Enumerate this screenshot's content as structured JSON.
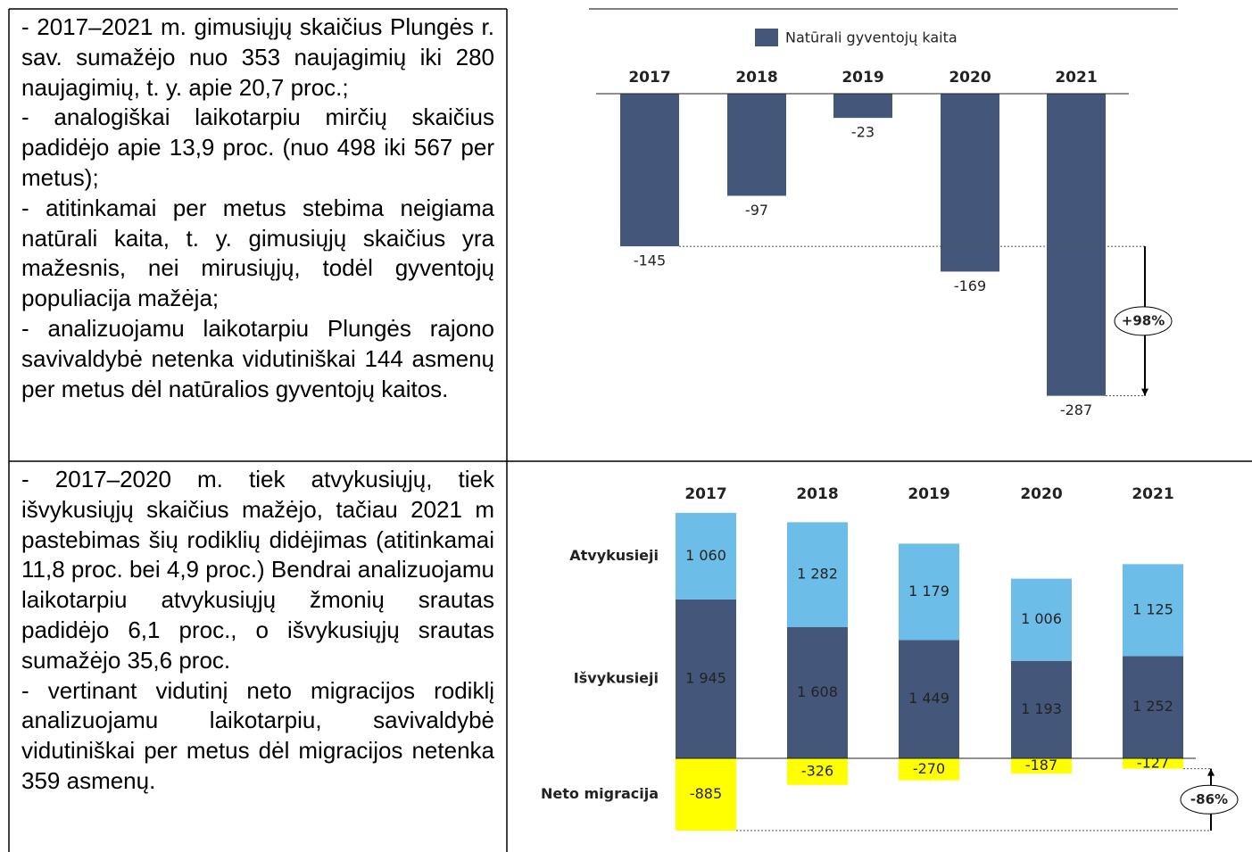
{
  "text_cells": [
    [
      "- 2017–2021 m. gimusiųjų skaičius Plungės r. sav. sumažėjo nuo 353 naujagimių iki 280 naujagimių, t. y. apie 20,7 proc.;",
      "- analogiškai laikotarpiu mirčių skaičius padidėjo apie 13,9 proc. (nuo 498 iki 567 per metus);",
      "- atitinkamai per metus stebima neigiama natūrali kaita, t. y. gimusiųjų skaičius yra mažesnis, nei mirusiųjų, todėl gyventojų populiacija mažėja;",
      "- analizuojamu laikotarpiu Plungės rajono savivaldybė netenka vidutiniškai 144 asmenų per metus dėl natūralios gyventojų kaitos."
    ],
    [
      "- 2017–2020 m. tiek atvykusiųjų, tiek išvykusiųjų skaičius mažėjo, tačiau 2021 m pastebimas šių rodiklių didėjimas (atitinkamai 11,8 proc. bei 4,9 proc.) Bendrai analizuojamu laikotarpiu atvykusiųjų žmonių srautas padidėjo 6,1 proc., o išvykusiųjų srautas sumažėjo 35,6 proc.",
      "- vertinant vidutinį neto migracijos rodiklį analizuojamu laikotarpiu, savivaldybė vidutiniškai per metus dėl migracijos netenka 359 asmenų."
    ]
  ],
  "chart_data": [
    {
      "type": "bar",
      "categories": [
        "2017",
        "2018",
        "2019",
        "2020",
        "2021"
      ],
      "series": [
        {
          "name": "Natūrali gyventojų kaita",
          "color": "#44577a",
          "values": [
            -145,
            -97,
            -23,
            -169,
            -287
          ]
        }
      ],
      "ylim": [
        -300,
        0
      ],
      "annotation": "+98%"
    },
    {
      "type": "stacked_bar",
      "categories": [
        "2017",
        "2018",
        "2019",
        "2020",
        "2021"
      ],
      "series": [
        {
          "name": "Atvykusieji",
          "color": "#6dbde9",
          "values": [
            1060,
            1282,
            1179,
            1006,
            1125
          ],
          "value_labels": [
            "1 060",
            "1 282",
            "1 179",
            "1 006",
            "1 125"
          ]
        },
        {
          "name": "Išvykusieji",
          "color": "#44577a",
          "values": [
            1945,
            1608,
            1449,
            1193,
            1252
          ],
          "value_labels": [
            "1 945",
            "1 608",
            "1 449",
            "1 193",
            "1 252"
          ]
        },
        {
          "name": "Neto migracija",
          "color": "#ffff00",
          "values": [
            -885,
            -326,
            -270,
            -187,
            -127
          ]
        }
      ],
      "ylim": [
        -1000,
        3200
      ],
      "annotation": "-86%"
    }
  ]
}
